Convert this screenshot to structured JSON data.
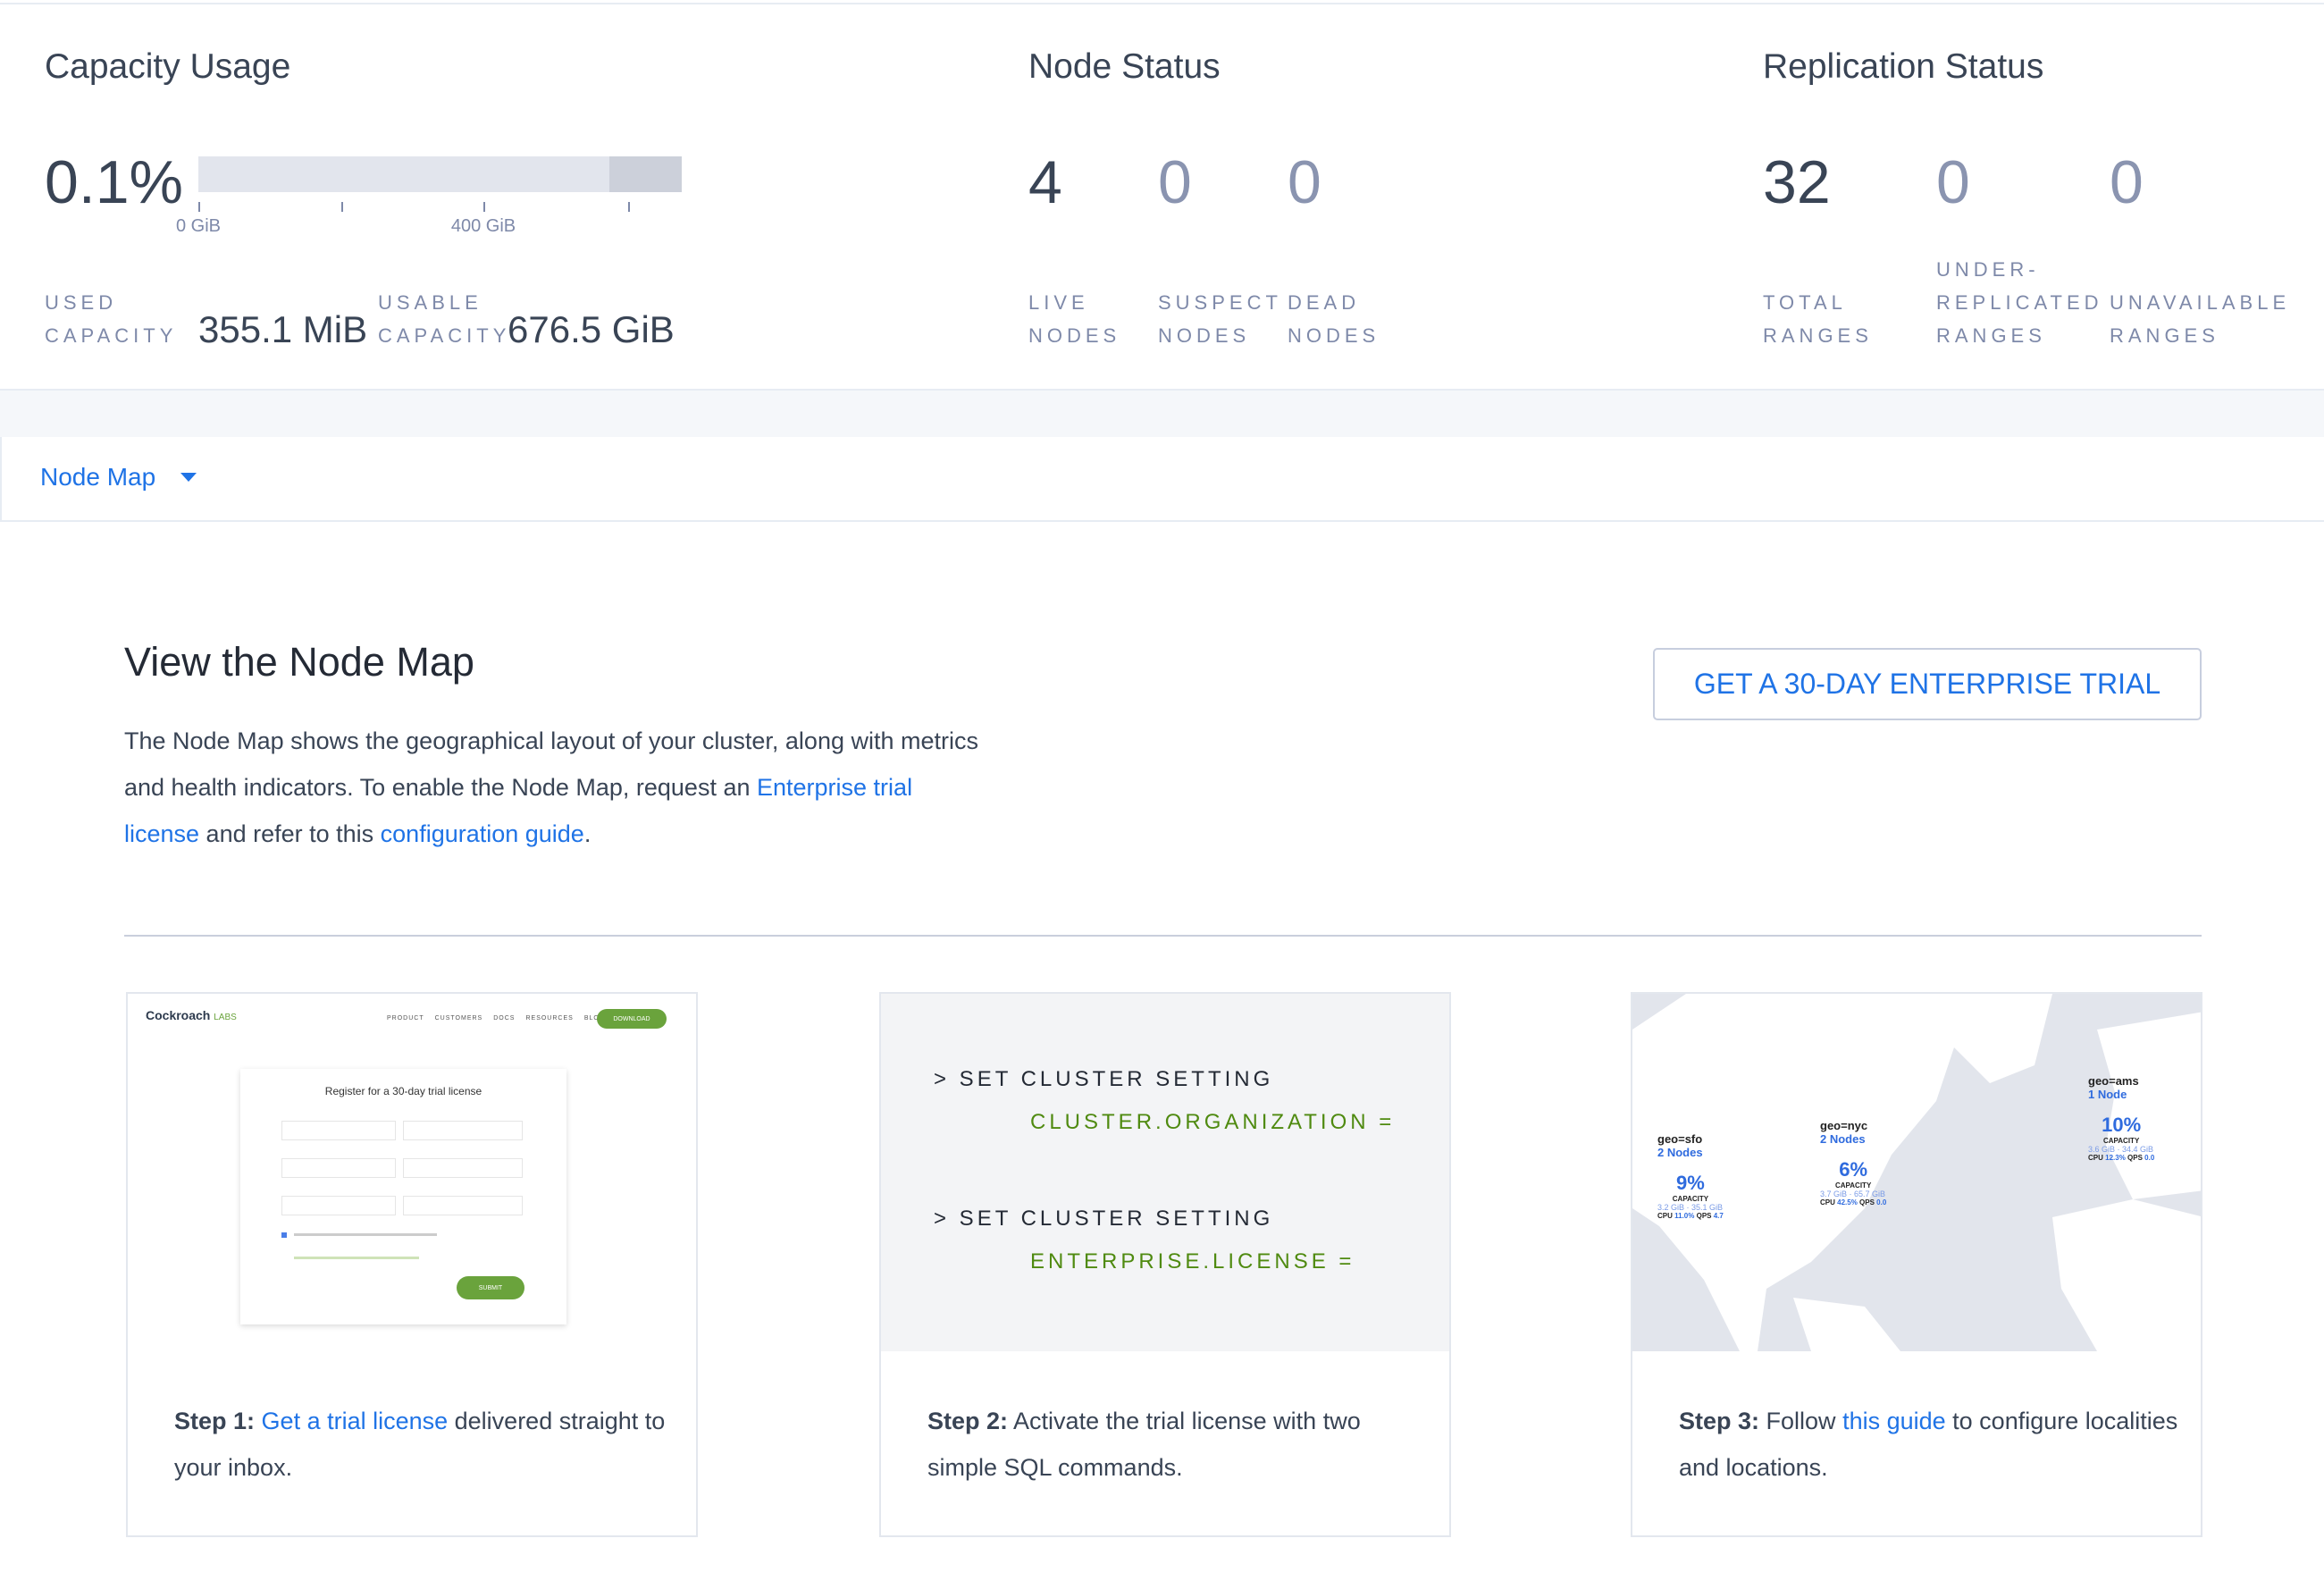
{
  "capacity": {
    "title": "Capacity Usage",
    "percent": "0.1%",
    "usage_fraction": 0.001,
    "ticks": [
      "0 GiB",
      "400 GiB"
    ],
    "used_label_1": "USED",
    "used_label_2": "CAPACITY",
    "used_value": "355.1 MiB",
    "usable_label_1": "USABLE",
    "usable_label_2": "CAPACITY",
    "usable_value": "676.5 GiB"
  },
  "node_status": {
    "title": "Node Status",
    "stats": [
      {
        "value": "4",
        "l1": "LIVE",
        "l2": "NODES"
      },
      {
        "value": "0",
        "l1": "SUSPECT",
        "l2": "NODES"
      },
      {
        "value": "0",
        "l1": "DEAD",
        "l2": "NODES"
      }
    ]
  },
  "replication": {
    "title": "Replication Status",
    "stats": [
      {
        "value": "32",
        "l1": "TOTAL",
        "l2": "RANGES"
      },
      {
        "value": "0",
        "l0": "UNDER-",
        "l1": "REPLICATED",
        "l2": "RANGES"
      },
      {
        "value": "0",
        "l1": "UNAVAILABLE",
        "l2": "RANGES"
      }
    ]
  },
  "view_select": {
    "label": "Node Map"
  },
  "main": {
    "title": "View the Node Map",
    "p1": "The Node Map shows the geographical layout of your cluster, along with metrics and health indicators. To enable the Node Map, request an ",
    "link1": "Enterprise trial license",
    "p2": " and refer to this ",
    "link2": "configuration guide",
    "p3": ".",
    "trial_button": "GET A 30-DAY ENTERPRISE TRIAL"
  },
  "steps": [
    {
      "bold": "Step 1:",
      "link": "Get a trial license",
      "rest": " delivered straight to your inbox.",
      "img": {
        "logo": "Cockroach",
        "logo2": "LABS",
        "nav": [
          "PRODUCT",
          "CUSTOMERS",
          "DOCS",
          "RESOURCES",
          "BLOG"
        ],
        "download": "DOWNLOAD",
        "form_title": "Register for a 30-day trial license",
        "submit": "SUBMIT"
      }
    },
    {
      "bold": "Step 2:",
      "rest": " Activate the trial license with two simple SQL commands.",
      "sql": [
        "> SET CLUSTER SETTING",
        "CLUSTER.ORGANIZATION =",
        "> SET CLUSTER SETTING",
        "ENTERPRISE.LICENSE ="
      ]
    },
    {
      "bold": "Step 3:",
      "pre": " Follow ",
      "link": "this guide",
      "rest": " to configure localities and locations.",
      "map": [
        {
          "name": "geo=sfo",
          "nodes": "2 Nodes",
          "pct": "9%",
          "cap": "CAPACITY",
          "lo": "3.2 GiB",
          "hi": "35.1 GiB",
          "cpu": "11.0%",
          "qps": "4.7"
        },
        {
          "name": "geo=nyc",
          "nodes": "2 Nodes",
          "pct": "6%",
          "cap": "CAPACITY",
          "lo": "3.7 GiB",
          "hi": "65.7 GiB",
          "cpu": "42.5%",
          "qps": "0.0"
        },
        {
          "name": "geo=ams",
          "nodes": "1 Node",
          "pct": "10%",
          "cap": "CAPACITY",
          "lo": "3.6 GiB",
          "hi": "34.4 GiB",
          "cpu": "12.3%",
          "qps": "0.0"
        }
      ]
    }
  ],
  "colors": {
    "link": "#1f73e6",
    "sql_green": "#4f8a10",
    "label": "#7e89a9",
    "text": "#394455"
  }
}
